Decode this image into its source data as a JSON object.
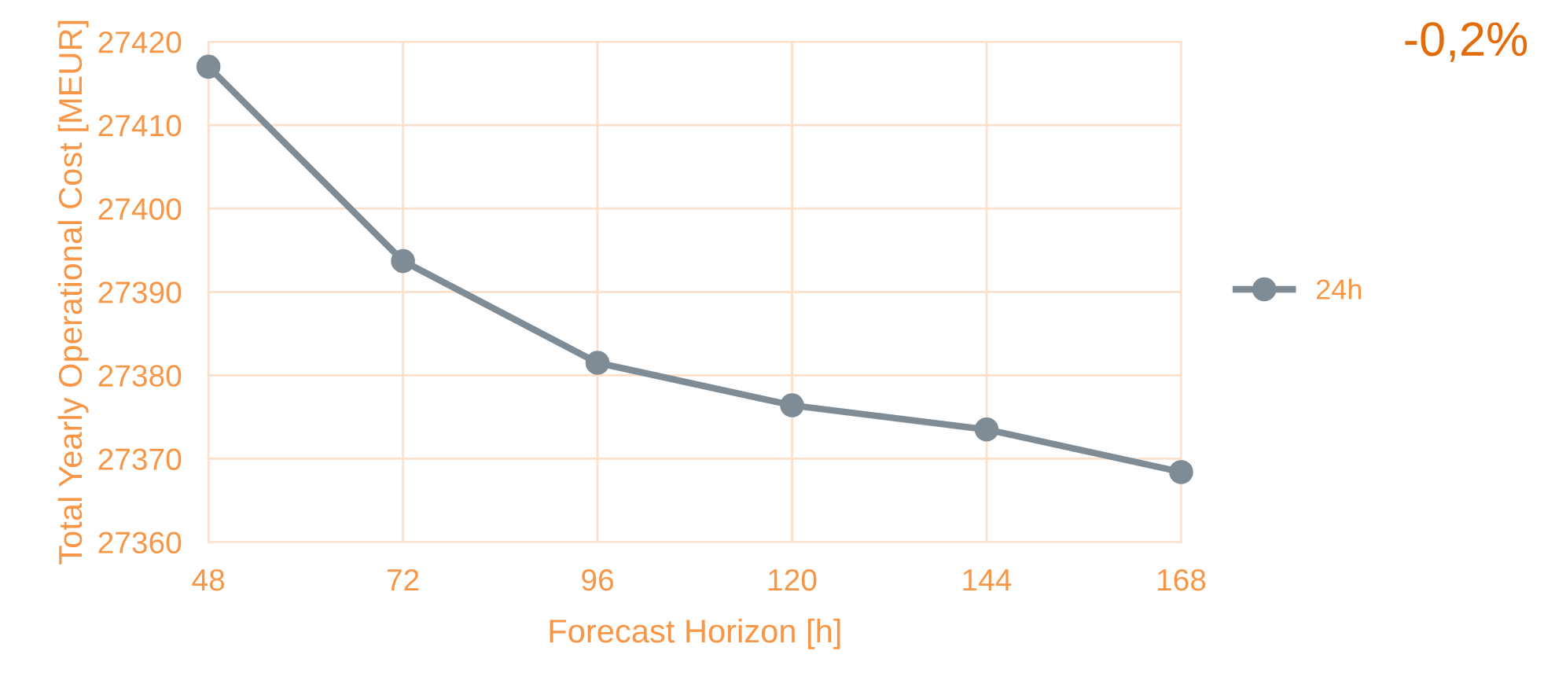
{
  "chart_data": {
    "type": "line",
    "xlabel": "Forecast Horizon [h]",
    "ylabel": "Total Yearly Operational Cost [MEUR]",
    "x": [
      48,
      72,
      96,
      120,
      144,
      168
    ],
    "series": [
      {
        "name": "24h",
        "color": "#7f8c96",
        "values": [
          27417.0,
          27393.7,
          27381.5,
          27376.4,
          27373.5,
          27368.4
        ]
      }
    ],
    "xlim": [
      48,
      168
    ],
    "xticks": [
      48,
      72,
      96,
      120,
      144,
      168
    ],
    "ylim": [
      27360,
      27420
    ],
    "yticks": [
      27360,
      27370,
      27380,
      27390,
      27400,
      27410,
      27420
    ],
    "grid": true,
    "legend": "right",
    "marker": "circle",
    "line_style": "solid",
    "annotations": [
      "-0,2%"
    ]
  }
}
